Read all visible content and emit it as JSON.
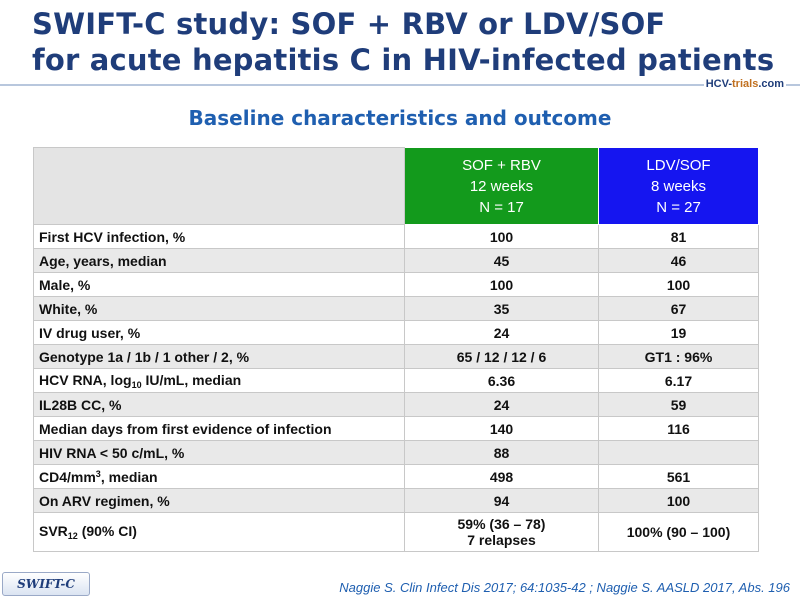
{
  "title": {
    "line1": "SWIFT-C study: SOF + RBV or LDV/SOF",
    "line2": "for acute hepatitis C in HIV-infected patients"
  },
  "logo": {
    "pre": "HCV-",
    "accent": "trials",
    "post": ".com"
  },
  "subtitle": "Baseline characteristics and outcome",
  "table": {
    "header": {
      "sof": [
        "SOF + RBV",
        "12 weeks",
        "N = 17"
      ],
      "ldv": [
        "LDV/SOF",
        "8 weeks",
        "N = 27"
      ]
    },
    "rows": [
      {
        "label": "First HCV infection, %",
        "sof": "100",
        "ldv": "81"
      },
      {
        "label": "Age, years, median",
        "sof": "45",
        "ldv": "46"
      },
      {
        "label": "Male, %",
        "sof": "100",
        "ldv": "100"
      },
      {
        "label": "White, %",
        "sof": "35",
        "ldv": "67"
      },
      {
        "label": "IV drug user, %",
        "sof": "24",
        "ldv": "19"
      },
      {
        "label": "Genotype 1a / 1b / 1 other / 2, %",
        "sof": "65 / 12 / 12 / 6",
        "ldv": "GT1 : 96%"
      },
      {
        "label_pre": "HCV RNA, log",
        "label_sub": "10",
        "label_post": " IU/mL, median",
        "sof": "6.36",
        "ldv": "6.17"
      },
      {
        "label": "IL28B CC, %",
        "sof": "24",
        "ldv": "59"
      },
      {
        "label": "Median days from first evidence of infection",
        "sof": "140",
        "ldv": "116"
      },
      {
        "label": "HIV RNA < 50 c/mL, %",
        "sof": "88",
        "ldv": ""
      },
      {
        "label_pre": "CD4/mm",
        "label_sup": "3",
        "label_post": ", median",
        "sof": "498",
        "ldv": "561"
      },
      {
        "label": "On ARV regimen, %",
        "sof": "94",
        "ldv": "100"
      },
      {
        "label_pre": "SVR",
        "label_sub": "12",
        "label_post": " (90% CI)",
        "sof_line1": "59% (36 – 78)",
        "sof_line2": "7 relapses",
        "ldv": "100% (90 – 100)"
      }
    ]
  },
  "tag": "SWIFT-C",
  "reference": "Naggie S. Clin Infect Dis 2017; 64:1035-42 ; Naggie S. AASLD 2017, Abs. 196",
  "colors": {
    "title": "#1f3d7a",
    "subtitle": "#1f5fb0",
    "sof_header": "#139a1c",
    "ldv_header": "#1515f0"
  }
}
